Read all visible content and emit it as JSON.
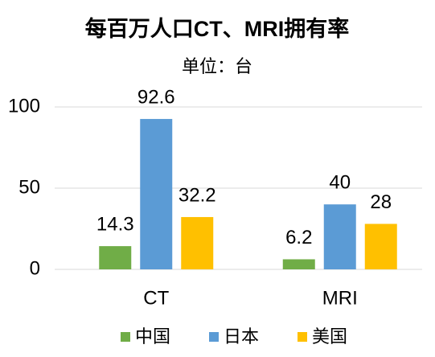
{
  "chart_data": {
    "type": "bar",
    "title": "每百万人口CT、MRI拥有率",
    "subtitle": "单位：台",
    "categories": [
      "CT",
      "MRI"
    ],
    "series": [
      {
        "name": "中国",
        "color": "#70ad47",
        "values": [
          14.3,
          6.2
        ]
      },
      {
        "name": "日本",
        "color": "#5b9bd5",
        "values": [
          92.6,
          40
        ]
      },
      {
        "name": "美国",
        "color": "#ffc000",
        "values": [
          32.2,
          28
        ]
      }
    ],
    "ylim": [
      0,
      100
    ],
    "yticks": [
      0,
      50,
      100
    ],
    "grid": true,
    "legend": "bottom"
  }
}
